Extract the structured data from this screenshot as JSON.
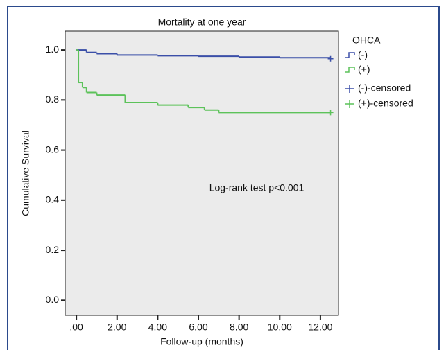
{
  "chart_data": {
    "type": "step",
    "title": "Mortality at one year",
    "x_label": "Follow-up (months)",
    "y_label": "Cumulative Survival",
    "annotation": "Log-rank test p<0.001",
    "legend_title": "OHCA",
    "xlim": [
      -0.55,
      12.89
    ],
    "ylim": [
      -0.06,
      1.075
    ],
    "xticks": [
      {
        "value": 0,
        "label": ".00"
      },
      {
        "value": 2,
        "label": "2.00"
      },
      {
        "value": 4,
        "label": "4.00"
      },
      {
        "value": 6,
        "label": "6.00"
      },
      {
        "value": 8,
        "label": "8.00"
      },
      {
        "value": 10,
        "label": "10.00"
      },
      {
        "value": 12,
        "label": "12.00"
      }
    ],
    "yticks": [
      {
        "value": 0,
        "label": "0.0"
      },
      0.2,
      0.4,
      0.6,
      0.8,
      {
        "value": 1,
        "label": "1.0"
      }
    ],
    "series": [
      {
        "name": "(-)",
        "color": "#3b4fa8",
        "marker": "step",
        "x": [
          0,
          0.5,
          1,
          2,
          4,
          6,
          8,
          10,
          12.5
        ],
        "values": [
          1.0,
          0.99,
          0.985,
          0.98,
          0.977,
          0.975,
          0.972,
          0.969,
          0.965
        ]
      },
      {
        "name": "(+)",
        "color": "#5cc25a",
        "marker": "step",
        "x": [
          0,
          0.1,
          0.3,
          0.5,
          1.0,
          2.4,
          4.0,
          5.5,
          6.3,
          7.0,
          12.5
        ],
        "values": [
          1.0,
          0.87,
          0.85,
          0.83,
          0.82,
          0.79,
          0.78,
          0.77,
          0.76,
          0.75,
          0.75
        ]
      },
      {
        "name": "(-)-censored",
        "color": "#3b4fa8",
        "marker": "plus",
        "x": [
          12.5
        ],
        "values": [
          0.965
        ]
      },
      {
        "name": "(+)-censored",
        "color": "#5cc25a",
        "marker": "plus",
        "x": [
          12.5
        ],
        "values": [
          0.75
        ]
      }
    ]
  }
}
